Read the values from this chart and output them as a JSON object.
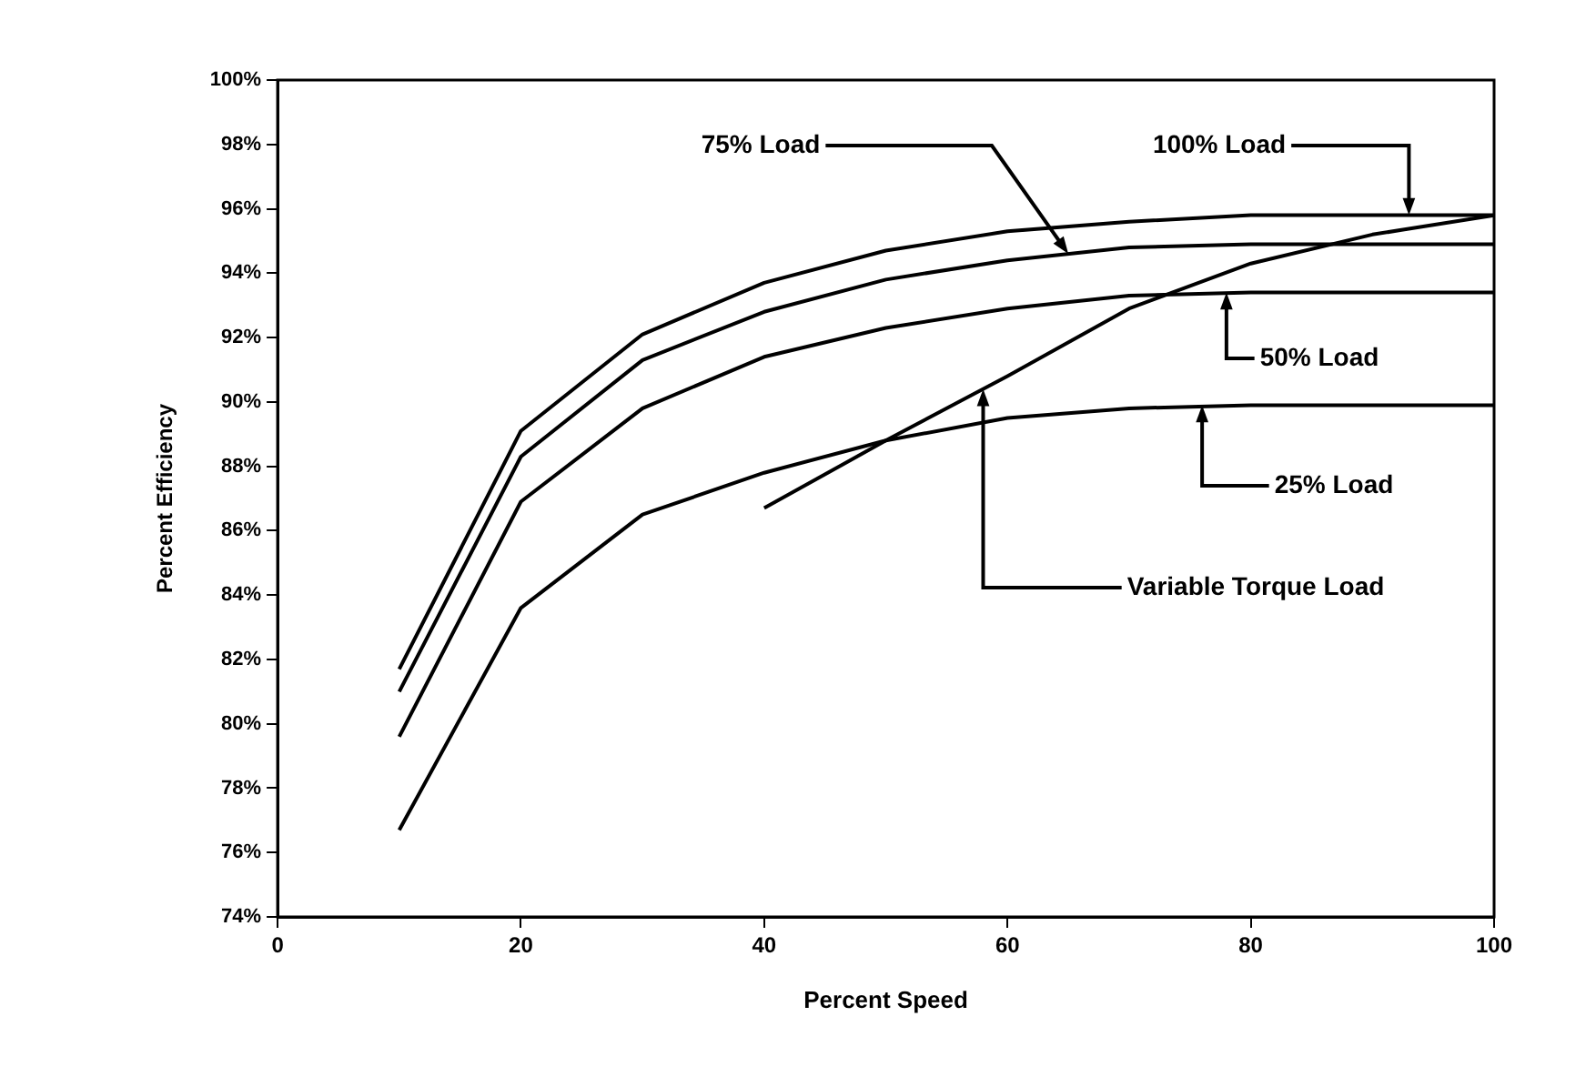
{
  "chart_data": {
    "type": "line",
    "xlabel": "Percent Speed",
    "ylabel": "Percent Efficiency",
    "xlim": [
      0,
      100
    ],
    "xticks": [
      0,
      20,
      40,
      60,
      80,
      100
    ],
    "ylim": [
      74,
      100
    ],
    "yticks": [
      {
        "value": 74,
        "label": "74%"
      },
      {
        "value": 76,
        "label": "76%"
      },
      {
        "value": 78,
        "label": "78%"
      },
      {
        "value": 80,
        "label": "80%"
      },
      {
        "value": 82,
        "label": "82%"
      },
      {
        "value": 84,
        "label": "84%"
      },
      {
        "value": 86,
        "label": "86%"
      },
      {
        "value": 88,
        "label": "88%"
      },
      {
        "value": 90,
        "label": "90%"
      },
      {
        "value": 92,
        "label": "92%"
      },
      {
        "value": 94,
        "label": "94%"
      },
      {
        "value": 96,
        "label": "96%"
      },
      {
        "value": 98,
        "label": "98%"
      },
      {
        "value": 100,
        "label": "100%"
      }
    ],
    "x": [
      10,
      20,
      30,
      40,
      50,
      60,
      70,
      80,
      90,
      100
    ],
    "series": [
      {
        "color": "#000000",
        "values": [
          81.7,
          89.1,
          92.1,
          93.7,
          94.7,
          95.3,
          95.6,
          95.8,
          95.8,
          95.8
        ]
      },
      {
        "color": "#000000",
        "values": [
          81.0,
          88.3,
          91.3,
          92.8,
          93.8,
          94.4,
          94.8,
          94.9,
          94.9,
          94.9
        ]
      },
      {
        "color": "#000000",
        "values": [
          79.6,
          86.9,
          89.8,
          91.4,
          92.3,
          92.9,
          93.3,
          93.4,
          93.4,
          93.4
        ]
      },
      {
        "color": "#000000",
        "values": [
          76.7,
          83.6,
          86.5,
          87.8,
          88.8,
          89.5,
          89.8,
          89.9,
          89.9,
          89.9
        ]
      },
      {
        "color": "#000000",
        "x": [
          40,
          50,
          60,
          70,
          80,
          90,
          100
        ],
        "values": [
          86.7,
          88.8,
          90.8,
          92.9,
          94.3,
          95.2,
          95.8
        ]
      }
    ],
    "annotations": [
      {
        "text": "75% Load",
        "x": 65,
        "y": 94.6
      },
      {
        "text": "100% Load",
        "x": 93,
        "y": 95.8
      },
      {
        "text": "50% Load",
        "x": 78,
        "y": 93.4
      },
      {
        "text": "25% Load",
        "x": 76,
        "y": 89.9
      },
      {
        "text": "Variable Torque Load",
        "x": 58,
        "y": 90.4
      }
    ],
    "grid": false,
    "legend": false,
    "marker": "none",
    "line_style": "solid"
  }
}
